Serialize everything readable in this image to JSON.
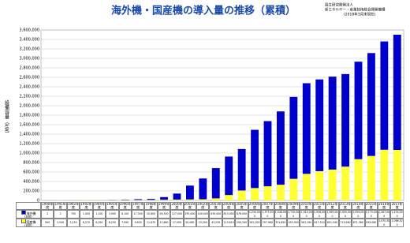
{
  "chart_data": {
    "type": "stacked_bar",
    "title": "海外機・国産機の導入量の推移（累積）",
    "notes": [
      "国立研究開発法人",
      "新エネルギー・産業技術総合開発機構",
      "(2018年3月末現在)"
    ],
    "y_label": "設備容量（kW）",
    "table_unit": "(kW)",
    "categories": [
      "1990年度",
      "1991年度",
      "1992年度",
      "1993年度",
      "1994年度",
      "1995年度",
      "1996年度",
      "1997年度",
      "1998年度",
      "1999年度",
      "2000年度",
      "2001年度",
      "2002年度",
      "2003年度",
      "2004年度",
      "2005年度",
      "2006年度",
      "2007年度",
      "2008年度",
      "2009年度",
      "2010年度",
      "2011年度",
      "2012年度",
      "2013年度",
      "2014年度",
      "2015年度",
      "2016年度",
      "2017年度"
    ],
    "series": [
      {
        "name": "海外機",
        "color": "#0000cc",
        "values": [
          2,
          2,
          700,
          1000,
          1100,
          3900,
          8100,
          17300,
          20800,
          56300,
          127000,
          293000,
          440000,
          639000,
          813000,
          876000,
          1230000,
          1377000,
          1548000,
          1730000,
          1914000,
          1938000,
          1963000,
          1955000,
          2059000,
          2173000,
          2287000,
          2434000
        ],
        "value_labels": [
          "2",
          "2",
          "700",
          "1,000",
          "1,100",
          "3,900",
          "8,100",
          "17,300",
          "20,800",
          "56,300",
          "127,000",
          "293,000",
          "440,000",
          "639,000",
          "813,000",
          "876,000",
          "1,230,000",
          "1,377,000",
          "1,548,000",
          "1,730,000",
          "1,914,000",
          "1,938,000",
          "1,963,000",
          "1,955,000",
          "2,059,000",
          "2,173,000",
          "2,287,000",
          "2,434,000"
        ]
      },
      {
        "name": "国産機",
        "color": "#ffff33",
        "values": [
          500,
          2540,
          3230,
          6270,
          6250,
          6250,
          7950,
          9610,
          11870,
          13680,
          17050,
          20060,
          23200,
          43230,
          113610,
          209340,
          261050,
          297960,
          331650,
          455900,
          561190,
          617510,
          651340,
          713960,
          871360,
          939060,
          1070300,
          1066520
        ],
        "value_labels": [
          "500",
          "2,540",
          "3,230",
          "6,270",
          "6,250",
          "6,250",
          "7,950",
          "9,610",
          "11,870",
          "13,680",
          "17,050",
          "20,060",
          "23,200",
          "43,230",
          "113,610",
          "209,340",
          "261,050",
          "297,960",
          "331,650",
          "455,900",
          "561,190",
          "617,510",
          "651,340",
          "713,960",
          "871,360",
          "939,060",
          "1,070,300",
          "1,066,520"
        ]
      }
    ],
    "ylim": [
      0,
      3600000
    ],
    "yticks": [
      {
        "value": 0,
        "label": "0"
      },
      {
        "value": 200000,
        "label": "200,000"
      },
      {
        "value": 400000,
        "label": "400,000"
      },
      {
        "value": 600000,
        "label": "600,000"
      },
      {
        "value": 800000,
        "label": "800,000"
      },
      {
        "value": 1000000,
        "label": "1,000,000"
      },
      {
        "value": 1200000,
        "label": "1,200,000"
      },
      {
        "value": 1400000,
        "label": "1,400,000"
      },
      {
        "value": 1600000,
        "label": "1,600,000"
      },
      {
        "value": 1800000,
        "label": "1,800,000"
      },
      {
        "value": 2000000,
        "label": "2,000,000"
      },
      {
        "value": 2200000,
        "label": "2,200,000"
      },
      {
        "value": 2400000,
        "label": "2,400,000"
      },
      {
        "value": 2600000,
        "label": "2,600,000"
      },
      {
        "value": 2800000,
        "label": "2,800,000"
      },
      {
        "value": 3000000,
        "label": "3,000,000"
      },
      {
        "value": 3200000,
        "label": "3,200,000"
      },
      {
        "value": 3400000,
        "label": "3,400,000"
      },
      {
        "value": 3600000,
        "label": "3,600,000"
      }
    ],
    "grid": true
  }
}
